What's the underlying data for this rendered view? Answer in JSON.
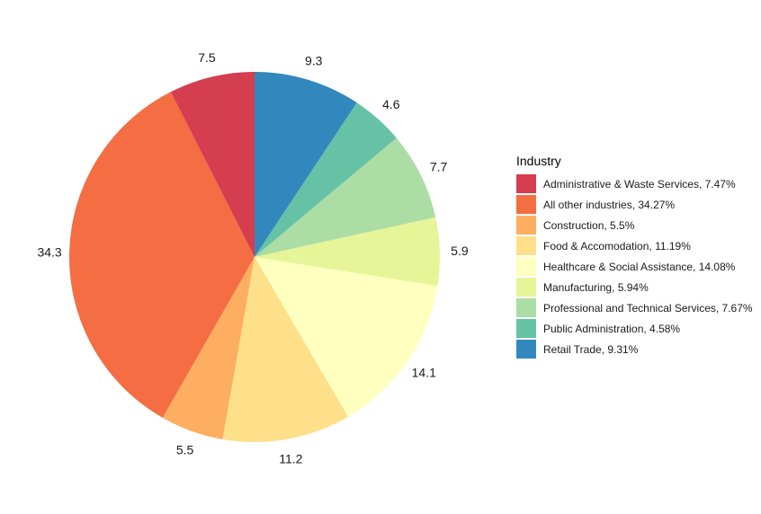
{
  "chart_data": {
    "type": "pie",
    "title": "",
    "legend_title": "Industry",
    "legend_position": "right",
    "start": "top",
    "direction": "clockwise",
    "slices": [
      {
        "name": "Retail Trade",
        "value": 9.31,
        "label": "9.3",
        "legend": "Retail Trade, 9.31%",
        "color": "#3288BD"
      },
      {
        "name": "Public Administration",
        "value": 4.58,
        "label": "4.6",
        "legend": "Public Administration, 4.58%",
        "color": "#66C2A5"
      },
      {
        "name": "Professional and Technical Services",
        "value": 7.67,
        "label": "7.7",
        "legend": "Professional and Technical Services, 7.67%",
        "color": "#ABDDA4"
      },
      {
        "name": "Manufacturing",
        "value": 5.94,
        "label": "5.9",
        "legend": "Manufacturing, 5.94%",
        "color": "#E6F598"
      },
      {
        "name": "Healthcare & Social Assistance",
        "value": 14.08,
        "label": "14.1",
        "legend": "Healthcare & Social Assistance, 14.08%",
        "color": "#FFFFBF"
      },
      {
        "name": "Food & Accomodation",
        "value": 11.19,
        "label": "11.2",
        "legend": "Food & Accomodation, 11.19%",
        "color": "#FEE08B"
      },
      {
        "name": "Construction",
        "value": 5.5,
        "label": "5.5",
        "legend": "Construction, 5.5%",
        "color": "#FDAE61"
      },
      {
        "name": "All other industries",
        "value": 34.27,
        "label": "34.3",
        "legend": "All other industries, 34.27%",
        "color": "#F46D43"
      },
      {
        "name": "Administrative & Waste Services",
        "value": 7.47,
        "label": "7.5",
        "legend": "Administrative & Waste Services, 7.47%",
        "color": "#D53E4F"
      }
    ],
    "legend_order": [
      8,
      7,
      6,
      5,
      4,
      3,
      2,
      1,
      0
    ]
  }
}
